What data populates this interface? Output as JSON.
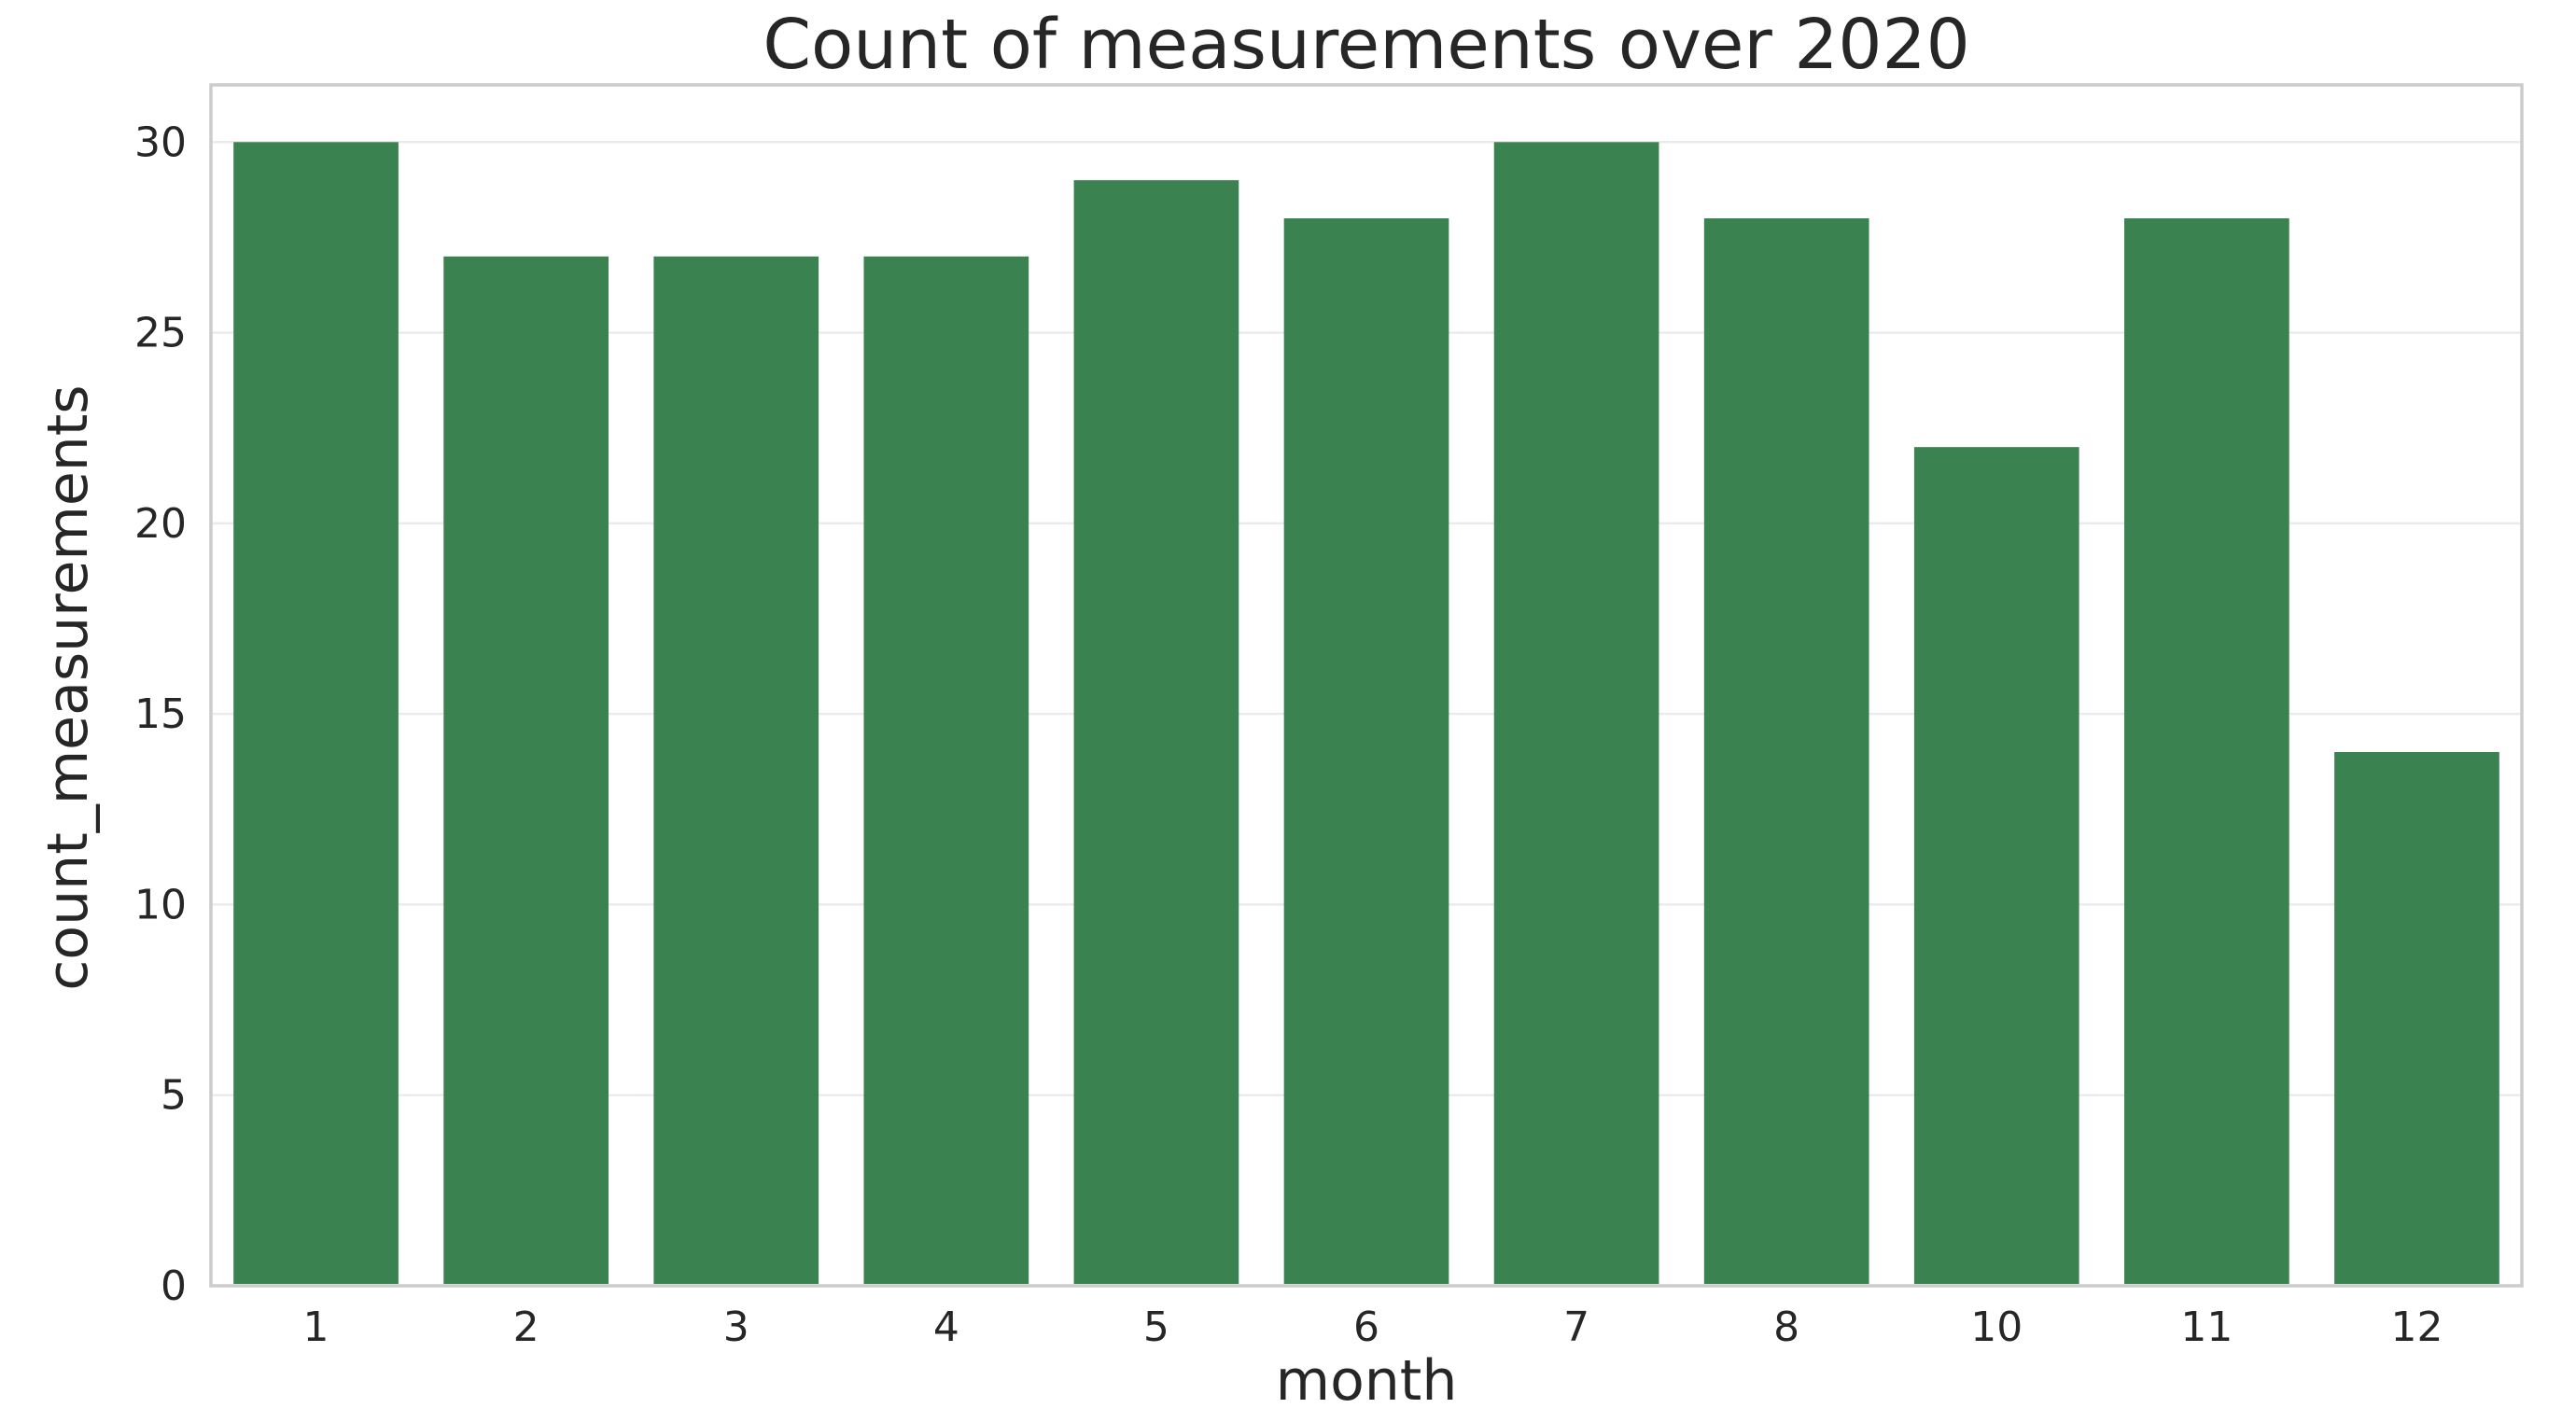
{
  "chart_data": {
    "type": "bar",
    "title": "Count of measurements over 2020",
    "xlabel": "month",
    "ylabel": "count_measurements",
    "categories": [
      "1",
      "2",
      "3",
      "4",
      "5",
      "6",
      "7",
      "8",
      "10",
      "11",
      "12"
    ],
    "values": [
      30,
      27,
      27,
      27,
      29,
      28,
      30,
      28,
      22,
      28,
      14
    ],
    "ylim": [
      0,
      31.5
    ],
    "yticks": [
      0,
      5,
      10,
      15,
      20,
      25,
      30
    ],
    "grid": true,
    "bar_color": "#3b8251"
  }
}
